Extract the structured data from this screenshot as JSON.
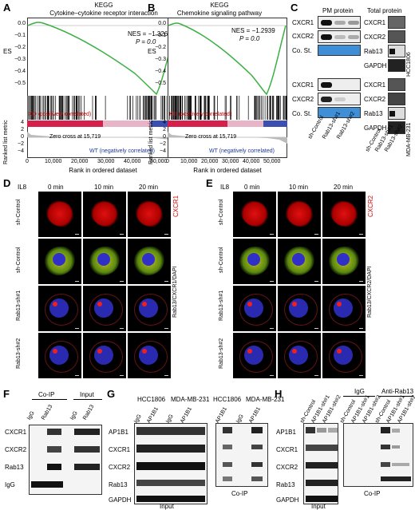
{
  "panelA": {
    "label": "A",
    "title1": "KEGG",
    "title2": "Cytokine–cytokine receptor interaction",
    "nes": "NES = −1.3261",
    "p": "P = 0.0",
    "es_label": "ES",
    "y_ticks": [
      "0.0",
      "−0.1",
      "−0.2",
      "−0.3",
      "−0.4",
      "−0.5"
    ],
    "kd": "KD (positively correlated)",
    "wt": "WT (negatively correlated)",
    "zero": "Zero cross at 15,719",
    "metric_label": "Ranked list metric",
    "metric_ticks": [
      "4",
      "2",
      "0",
      "−2",
      "−4"
    ],
    "x_ticks": [
      "0",
      "10,000",
      "20,000",
      "30,000",
      "40,000",
      "50,000"
    ],
    "xlabel": "Rank in ordered dataset"
  },
  "panelB": {
    "label": "B",
    "title1": "KEGG",
    "title2": "Chemokine signaling pathway",
    "nes": "NES = −1.2939",
    "p": "P = 0.0",
    "es_label": "ES",
    "y_ticks": [
      "0.0",
      "−0.1",
      "−0.2",
      "−0.3",
      "−0.4",
      "−0.5"
    ],
    "kd": "KD (positively correlated)",
    "wt": "WT (negatively correlated)",
    "zero": "Zero cross at 15,719",
    "metric_label": "Ranked list metric",
    "metric_ticks": [
      "4",
      "2",
      "0",
      "−2",
      "−4"
    ],
    "x_ticks": [
      "0",
      "10,000",
      "20,000",
      "30,000",
      "40,000",
      "50,000"
    ],
    "xlabel": "Rank in ordered dataset"
  },
  "panelC": {
    "label": "C",
    "pm": "PM protein",
    "total": "Total protein",
    "rows_top_left": [
      "CXCR1",
      "CXCR2",
      "Co. St."
    ],
    "rows_top_right": [
      "CXCR1",
      "CXCR2",
      "Rab13",
      "GAPDH"
    ],
    "rows_bot_left": [
      "CXCR1",
      "CXCR2",
      "Co. St."
    ],
    "rows_bot_right": [
      "CXCR1",
      "CXCR2",
      "Rab13",
      "GAPDH"
    ],
    "cell1": "HCC1806",
    "cell2": "MDA-MB-231",
    "lanes": [
      "sh-Control",
      "Rab13-sh#1",
      "Rab13-sh#2"
    ]
  },
  "panelD": {
    "label": "D",
    "il8": "IL8",
    "times": [
      "0 min",
      "10 min",
      "20 min"
    ],
    "rows": [
      "sh-Control",
      "sh-Control",
      "Rab13-sh#1",
      "Rab13-sh#2"
    ],
    "red_label": "CXCR1",
    "merge_label": "Rab13/CXCR1/DAPI"
  },
  "panelE": {
    "label": "E",
    "il8": "IL8",
    "times": [
      "0 min",
      "10 min",
      "20 min"
    ],
    "rows": [
      "sh-Control",
      "sh-Control",
      "Rab13-sh#1",
      "Rab13-sh#2"
    ],
    "red_label": "CXCR2",
    "merge_label": "Rab13/CXCR2/DAPI"
  },
  "panelF": {
    "label": "F",
    "coip": "Co-IP",
    "input": "Input",
    "lanes": [
      "IgG",
      "Rab13",
      "IgG",
      "Rab13"
    ],
    "rows": [
      "CXCR1",
      "CXCR2",
      "Rab13",
      "IgG"
    ]
  },
  "panelG": {
    "label": "G",
    "cells": [
      "HCC1806",
      "MDA-MB-231",
      "HCC1806",
      "MDA-MB-231"
    ],
    "lanes": [
      "IgG",
      "AP1B1",
      "IgG",
      "AP1B1",
      "AP1B1",
      "IgG",
      "AP1B1"
    ],
    "rows": [
      "AP1B1",
      "CXCR1",
      "CXCR2",
      "Rab13",
      "GAPDH"
    ],
    "input": "Input",
    "coip": "Co-IP"
  },
  "panelH": {
    "label": "H",
    "igg": "IgG",
    "anti": "Anti-Rab13",
    "lanes_left": [
      "sh-Control",
      "AP1B1-sh#1",
      "AP1B1-sh#2"
    ],
    "lanes_right": [
      "sh-Control",
      "AP1B1-sh#1",
      "AP1B1-sh#2",
      "sh-Control",
      "AP1B1-sh#1",
      "AP1B1-sh#2"
    ],
    "rows": [
      "AP1B1",
      "CXCR1",
      "CXCR2",
      "Rab13",
      "GAPDH"
    ],
    "input": "Input",
    "coip": "Co-IP"
  }
}
